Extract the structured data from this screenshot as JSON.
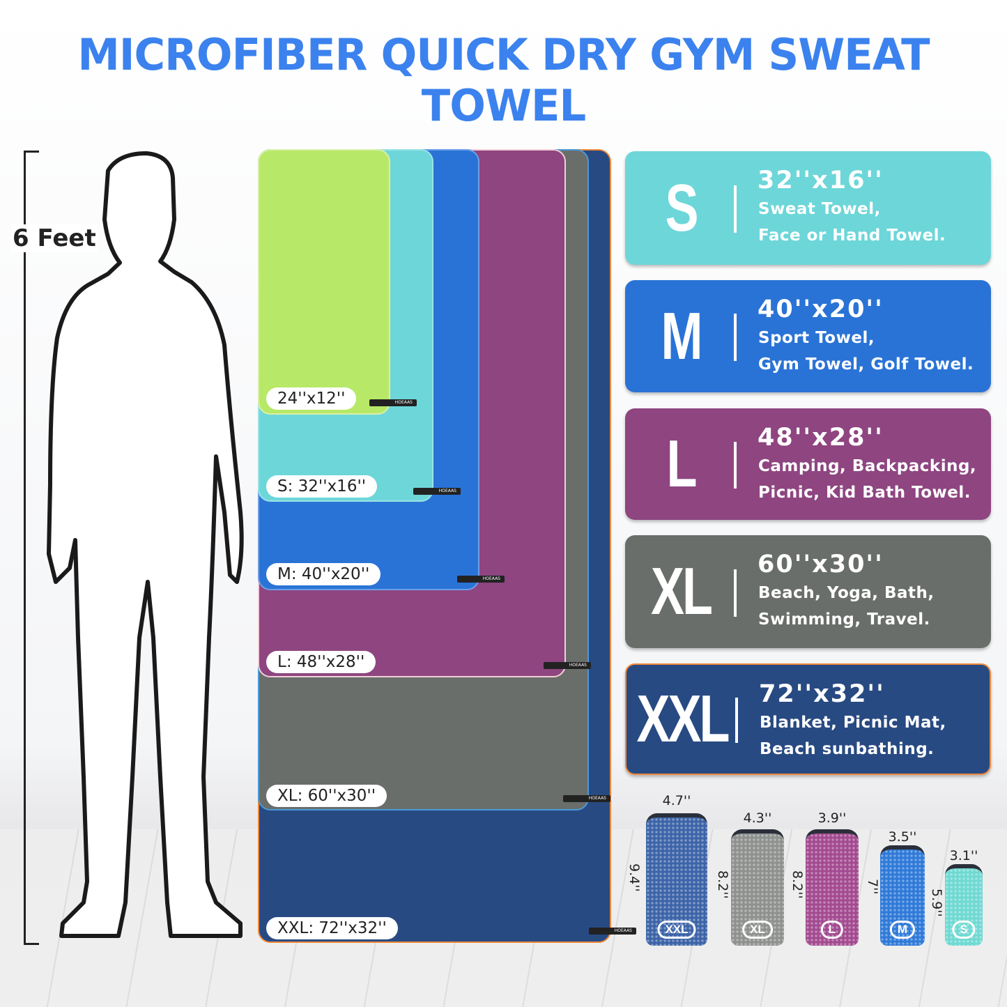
{
  "title": "MICROFIBER QUICK DRY GYM SWEAT TOWEL",
  "height_label": "6 Feet",
  "towels": [
    {
      "label": "XXL: 72''x32''",
      "color": "#284a82"
    },
    {
      "label": "XL: 60''x30''",
      "color": "#6a6e6a"
    },
    {
      "label": "L: 48''x28''",
      "color": "#8e4580"
    },
    {
      "label": "M: 40''x20''",
      "color": "#2a73d6"
    },
    {
      "label": "S: 32''x16''",
      "color": "#6dd6d9"
    },
    {
      "label": "24''x12''",
      "color": "#b8e868"
    }
  ],
  "brand_tag": "HOEAAS",
  "cards": [
    {
      "size": "S",
      "dims": "32''x16''",
      "line1": "Sweat Towel,",
      "line2": "Face or Hand Towel.",
      "color": "#6dd6d9"
    },
    {
      "size": "M",
      "dims": "40''x20''",
      "line1": "Sport Towel,",
      "line2": "Gym Towel, Golf Towel.",
      "color": "#2a73d6"
    },
    {
      "size": "L",
      "dims": "48''x28''",
      "line1": "Camping, Backpacking,",
      "line2": "Picnic, Kid Bath Towel.",
      "color": "#8e4580"
    },
    {
      "size": "XL",
      "dims": "60''x30''",
      "line1": "Beach, Yoga, Bath,",
      "line2": "Swimming, Travel.",
      "color": "#6a6e6a"
    },
    {
      "size": "XXL",
      "dims": "72''x32''",
      "line1": "Blanket, Picnic Mat,",
      "line2": "Beach sunbathing.",
      "color": "#284a82"
    }
  ],
  "bags": [
    {
      "badge": "XXL",
      "width": "4.7''",
      "height": "9.4''",
      "color": "#3d64a8"
    },
    {
      "badge": "XL",
      "width": "4.3''",
      "height": "8.2''",
      "color": "#8e918e"
    },
    {
      "badge": "L",
      "width": "3.9''",
      "height": "8.2''",
      "color": "#a34a90"
    },
    {
      "badge": "M",
      "width": "3.5''",
      "height": "7''",
      "color": "#2f7ad8"
    },
    {
      "badge": "S",
      "width": "3.1''",
      "height": "5.9''",
      "color": "#6fd9d2"
    }
  ]
}
